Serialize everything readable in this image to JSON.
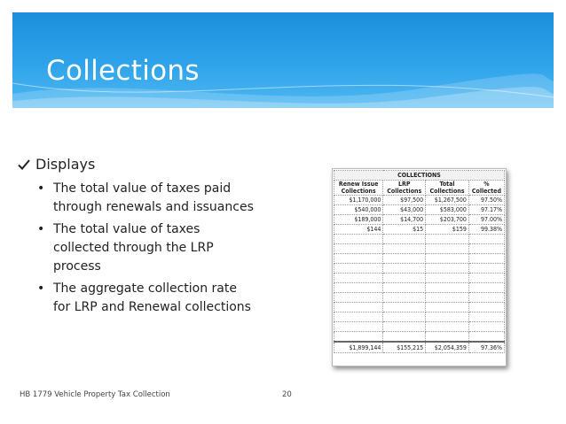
{
  "slide": {
    "title": "Collections",
    "heading": "Displays",
    "bullets": [
      "The total value of taxes paid through renewals and issuances",
      "The total value of taxes collected through the LRP process",
      "The aggregate collection rate for LRP and Renewal collections"
    ],
    "footer": "HB 1779 Vehicle Property Tax Collection",
    "page_number": "20",
    "accent_color": "#2196e0"
  },
  "table": {
    "title": "COLLECTIONS",
    "headers": [
      "Renew Issue Collections",
      "LRP Collections",
      "Total Collections",
      "% Collected"
    ],
    "rows": [
      [
        "$1,170,000",
        "$97,500",
        "$1,267,500",
        "97.50%"
      ],
      [
        "$540,000",
        "$43,000",
        "$583,000",
        "97.17%"
      ],
      [
        "$189,000",
        "$14,700",
        "$203,700",
        "97.00%"
      ],
      [
        "$144",
        "$15",
        "$159",
        "99.38%"
      ]
    ],
    "total": [
      "$1,899,144",
      "$155,215",
      "$2,054,359",
      "97.36%"
    ]
  }
}
